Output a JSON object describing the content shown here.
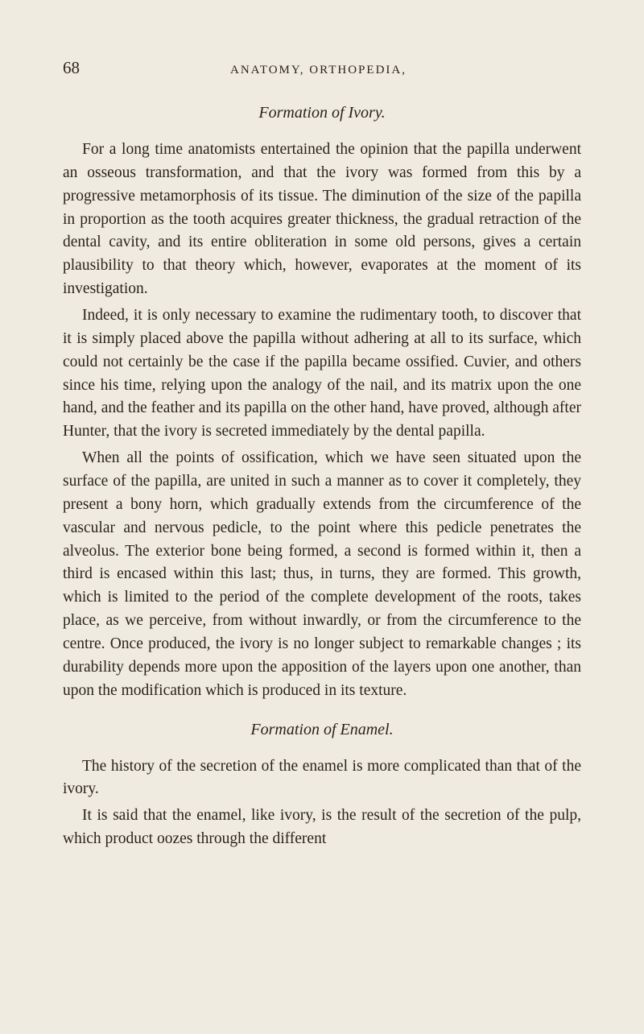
{
  "page": {
    "number": "68",
    "runningHead": "ANATOMY, ORTHOPEDIA,",
    "background_color": "#f0ebe0",
    "text_color": "#2a2418",
    "font_family": "Georgia, 'Times New Roman', serif",
    "body_fontsize": 19.5,
    "title_fontsize": 20,
    "header_fontsize": 15,
    "line_height": 1.48
  },
  "sections": {
    "s1": {
      "title": "Formation of Ivory.",
      "p1": "For a long time anatomists entertained the opinion that the papilla underwent an osseous transformation, and that the ivory was formed from this by a progressive metamorphosis of its tissue. The diminution of the size of the papilla in proportion as the tooth acquires greater thickness, the gradual retraction of the dental cavity, and its entire obliteration in some old persons, gives a certain plausibility to that theory which, however, evaporates at the moment of its investigation.",
      "p2": "Indeed, it is only necessary to examine the rudimentary tooth, to discover that it is simply placed above the papilla without adhering at all to its surface, which could not certainly be the case if the papilla became ossified. Cuvier, and others since his time, relying upon the analogy of the nail, and its matrix upon the one hand, and the feather and its papilla on the other hand, have proved, although after Hunter, that the ivory is secreted immediately by the dental papilla.",
      "p3": "When all the points of ossification, which we have seen situated upon the surface of the papilla, are united in such a manner as to cover it completely, they present a bony horn, which gradually extends from the circumference of the vascular and nervous pedicle, to the point where this pedicle penetrates the alveolus. The exterior bone being formed, a second is formed within it, then a third is encased within this last; thus, in turns, they are formed. This growth, which is limited to the period of the complete development of the roots, takes place, as we perceive, from without inwardly, or from the circumference to the centre. Once produced, the ivory is no longer subject to remarkable changes ; its durability depends more upon the apposition of the layers upon one another, than upon the modification which is produced in its texture."
    },
    "s2": {
      "title": "Formation of Enamel.",
      "p1": "The history of the secretion of the enamel is more complicated than that of the ivory.",
      "p2": "It is said that the enamel, like ivory, is the result of the secretion of the pulp, which product oozes through the different"
    }
  }
}
